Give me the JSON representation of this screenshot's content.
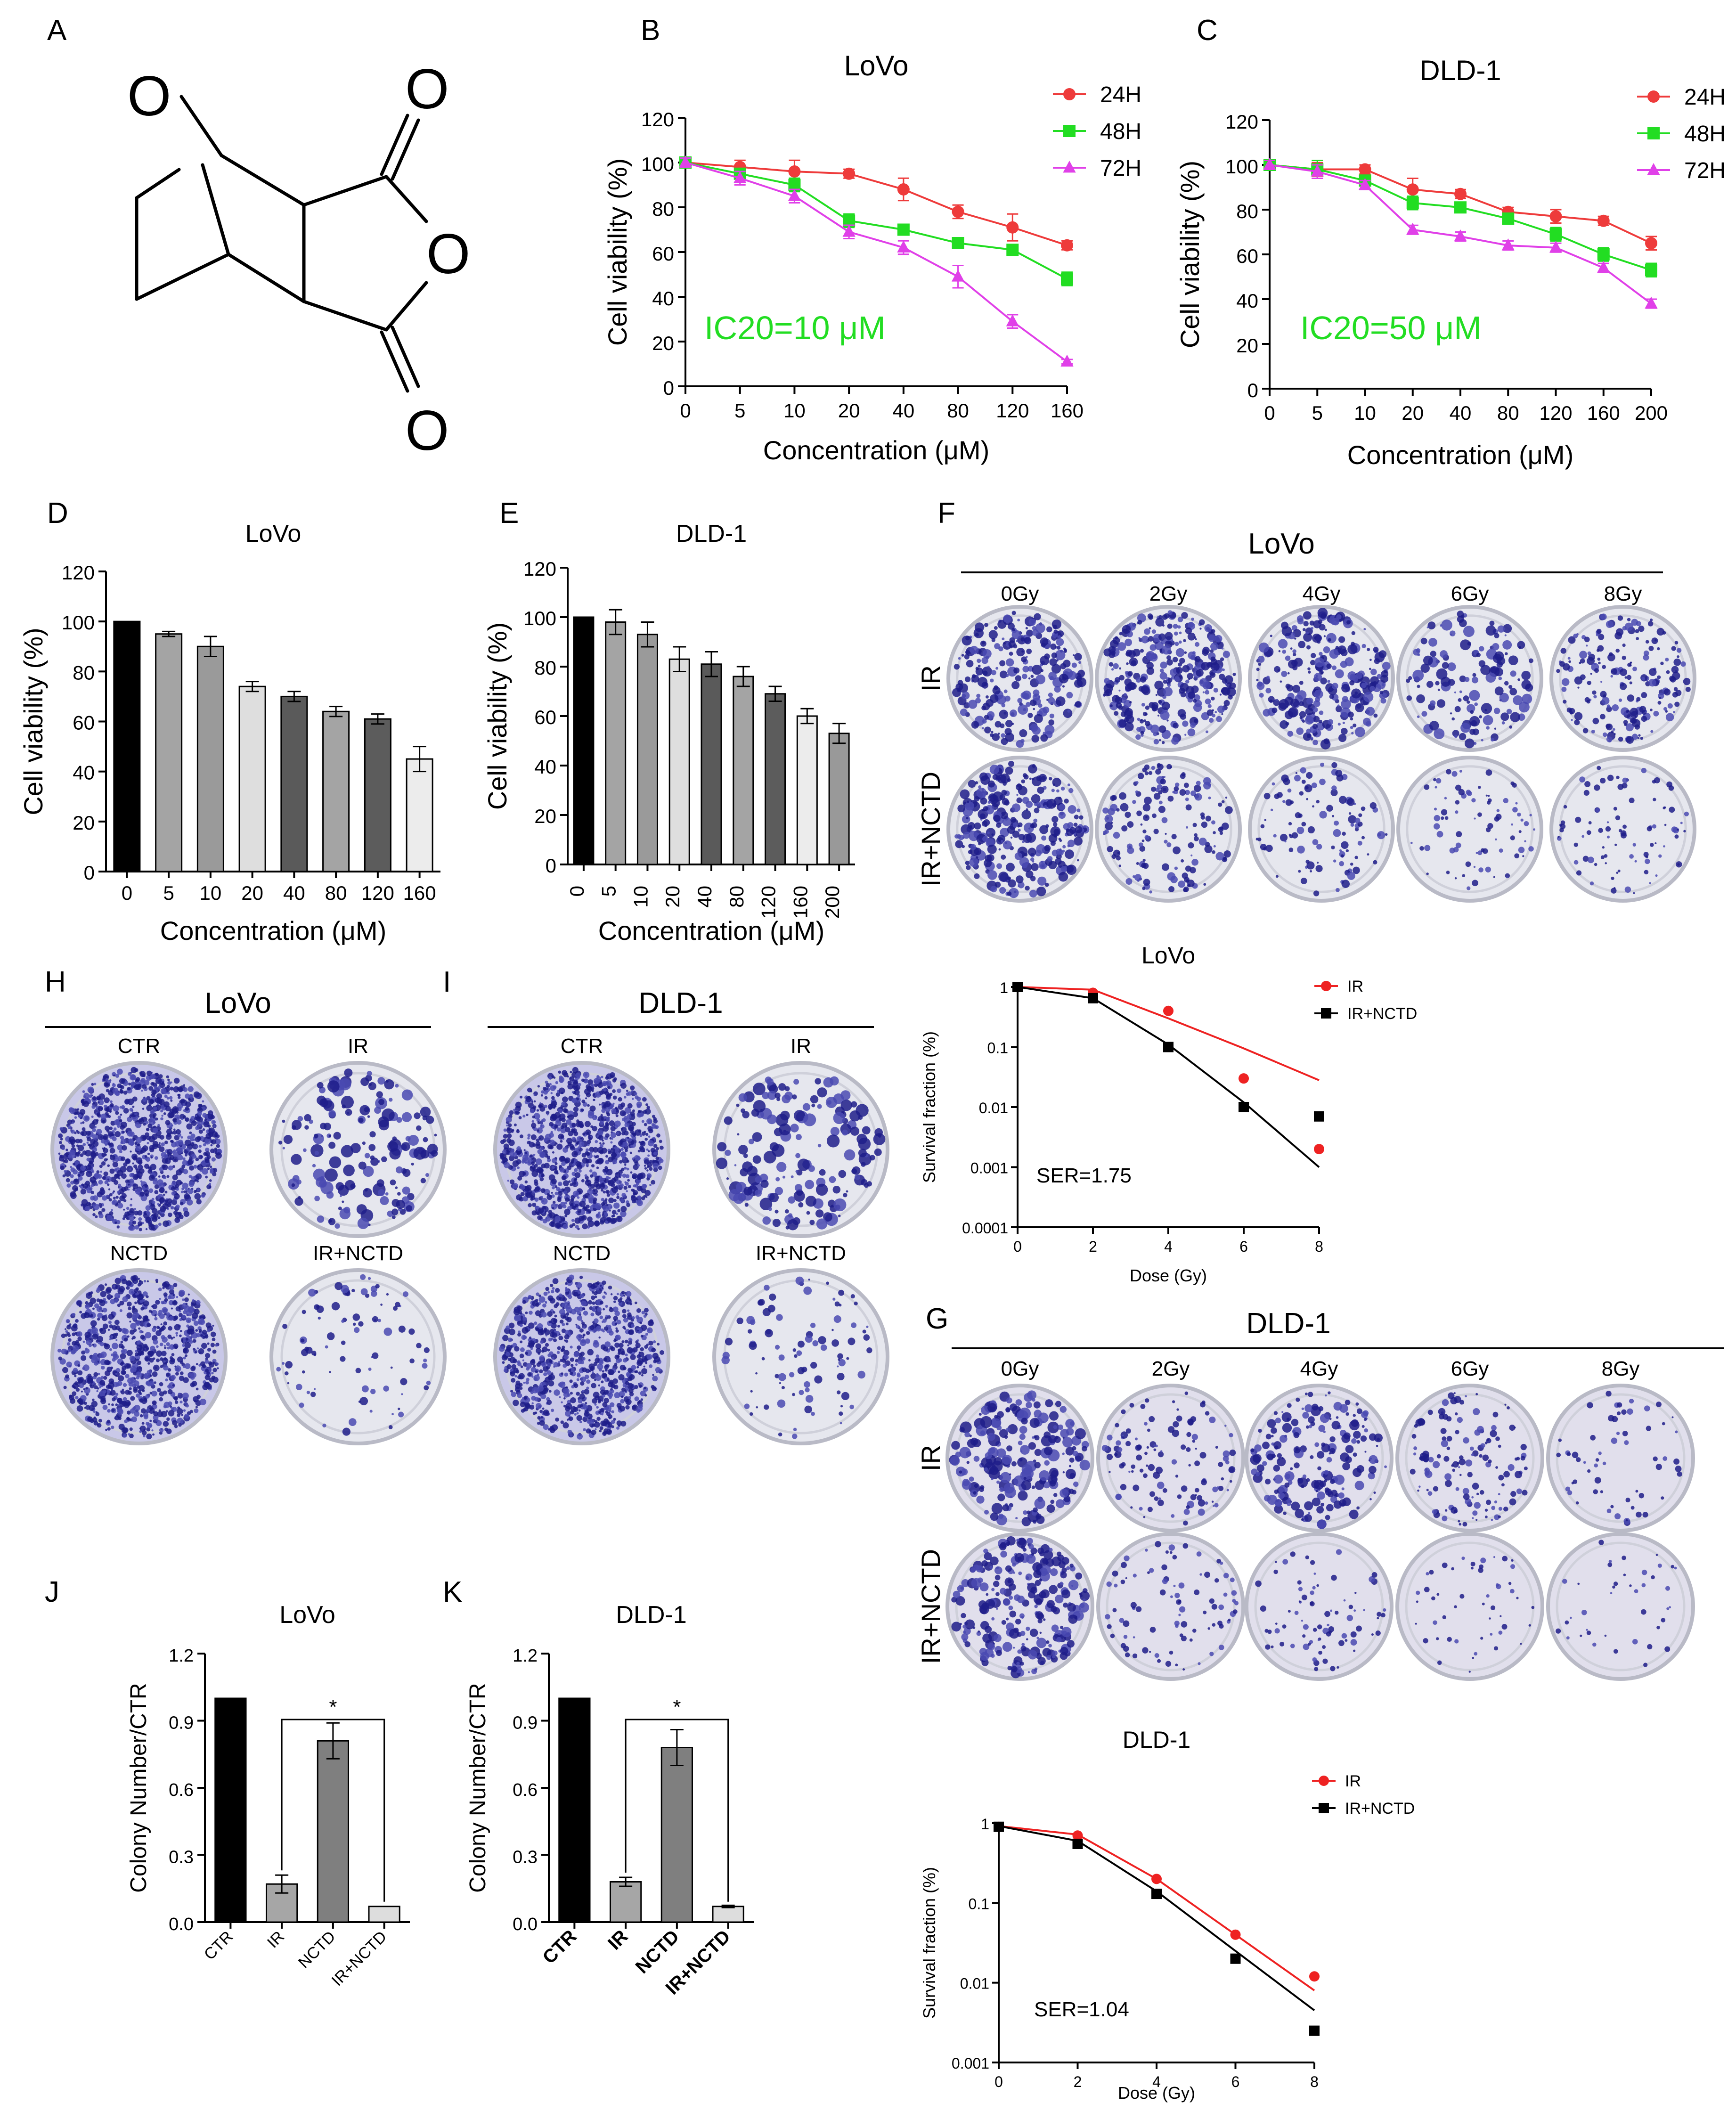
{
  "panel_letters": [
    "A",
    "B",
    "C",
    "D",
    "E",
    "F",
    "G",
    "H",
    "I",
    "J",
    "K"
  ],
  "molecule": {
    "atom_labels": [
      "O",
      "O",
      "O",
      "O"
    ]
  },
  "plates": {
    "doses": [
      "0Gy",
      "2Gy",
      "4Gy",
      "6Gy",
      "8Gy"
    ],
    "rows": [
      "IR",
      "IR+NCTD"
    ],
    "groups": [
      "CTR",
      "IR",
      "NCTD",
      "IR+NCTD"
    ],
    "lovo_title": "LoVo",
    "dld_title": "DLD-1",
    "colors": {
      "dark": "#1f1d8a",
      "mid": "#4a4ab2",
      "light": "#d7d8e2",
      "rim": "#b9bac6",
      "bg": "#e6e7ee"
    }
  },
  "chart_data": [
    {
      "id": "B",
      "type": "line",
      "title": "LoVo",
      "xlabel": "Concentration (μM)",
      "ylabel": "Cell viability (%)",
      "categories": [
        "0",
        "5",
        "10",
        "20",
        "40",
        "80",
        "120",
        "160"
      ],
      "ylim": [
        0,
        120
      ],
      "yticks": [
        "0",
        "20",
        "40",
        "60",
        "80",
        "100",
        "120"
      ],
      "annotation": "IC20=10 μM",
      "annotation_color": "#22dd22",
      "series": [
        {
          "name": "24H",
          "color": "#ee3b3b",
          "marker": "circle",
          "values": [
            100,
            98,
            96,
            95,
            88,
            78,
            71,
            63
          ],
          "err": [
            2,
            3,
            5,
            2,
            5,
            3,
            6,
            2
          ]
        },
        {
          "name": "48H",
          "color": "#22dd22",
          "marker": "square",
          "values": [
            100,
            95,
            90,
            74,
            70,
            64,
            61,
            48
          ],
          "err": [
            2,
            2,
            3,
            3,
            2,
            2,
            2,
            3
          ]
        },
        {
          "name": "72H",
          "color": "#e040e8",
          "marker": "triangle",
          "values": [
            100,
            93,
            85,
            69,
            62,
            49,
            29,
            11
          ],
          "err": [
            2,
            3,
            3,
            3,
            3,
            5,
            3,
            1
          ]
        }
      ]
    },
    {
      "id": "C",
      "type": "line",
      "title": "DLD-1",
      "xlabel": "Concentration (μM)",
      "ylabel": "Cell viability (%)",
      "categories": [
        "0",
        "5",
        "10",
        "20",
        "40",
        "80",
        "120",
        "160",
        "200"
      ],
      "ylim": [
        0,
        120
      ],
      "yticks": [
        "0",
        "20",
        "40",
        "60",
        "80",
        "100",
        "120"
      ],
      "annotation": "IC20=50 μM",
      "annotation_color": "#22dd22",
      "series": [
        {
          "name": "24H",
          "color": "#ee3b3b",
          "marker": "circle",
          "values": [
            100,
            98,
            98,
            89,
            87,
            79,
            77,
            75,
            65
          ],
          "err": [
            2,
            3,
            2,
            5,
            2,
            2,
            3,
            2,
            3
          ]
        },
        {
          "name": "48H",
          "color": "#22dd22",
          "marker": "square",
          "values": [
            100,
            98,
            93,
            83,
            81,
            76,
            69,
            60,
            53
          ],
          "err": [
            2,
            4,
            2,
            3,
            2,
            2,
            3,
            3,
            3
          ]
        },
        {
          "name": "72H",
          "color": "#e040e8",
          "marker": "triangle",
          "values": [
            100,
            97,
            91,
            71,
            68,
            64,
            63,
            54,
            38
          ],
          "err": [
            2,
            3,
            2,
            2,
            2,
            2,
            2,
            2,
            2
          ]
        }
      ]
    },
    {
      "id": "D",
      "type": "bar",
      "title": "LoVo",
      "xlabel": "Concentration (μM)",
      "ylabel": "Cell viability (%)",
      "categories": [
        "0",
        "5",
        "10",
        "20",
        "40",
        "80",
        "120",
        "160"
      ],
      "ylim": [
        0,
        120
      ],
      "yticks": [
        "0",
        "20",
        "40",
        "60",
        "80",
        "100",
        "120"
      ],
      "values": [
        100,
        95,
        90,
        74,
        70,
        64,
        61,
        45
      ],
      "err": [
        0,
        1,
        4,
        2,
        2,
        2,
        2,
        5
      ],
      "colors": [
        "#000000",
        "#a4a4a4",
        "#9a9a9a",
        "#dedede",
        "#5a5a5a",
        "#a4a4a4",
        "#5c5c5c",
        "#ececec"
      ]
    },
    {
      "id": "E",
      "type": "bar",
      "title": "DLD-1",
      "xlabel": "Concentration (μM)",
      "ylabel": "Cell viability (%)",
      "categories": [
        "0",
        "5",
        "10",
        "20",
        "40",
        "80",
        "120",
        "160",
        "200"
      ],
      "ylim": [
        0,
        120
      ],
      "yticks": [
        "0",
        "20",
        "40",
        "60",
        "80",
        "100",
        "120"
      ],
      "values": [
        100,
        98,
        93,
        83,
        81,
        76,
        69,
        60,
        53
      ],
      "err": [
        0,
        5,
        5,
        5,
        5,
        4,
        3,
        3,
        4
      ],
      "colors": [
        "#000000",
        "#a4a4a4",
        "#9a9a9a",
        "#dedede",
        "#5a5a5a",
        "#a4a4a4",
        "#5c5c5c",
        "#ececec",
        "#999999"
      ]
    },
    {
      "id": "F",
      "type": "scatter",
      "title": "LoVo",
      "xlabel": "Dose (Gy)",
      "ylabel": "Survival fraction (%)",
      "xlim": [
        0,
        8
      ],
      "xticks": [
        "0",
        "2",
        "4",
        "6",
        "8"
      ],
      "ylim_log": [
        0.0001,
        1
      ],
      "yticks": [
        "1",
        "0.1",
        "0.01",
        "0.001",
        "0.0001"
      ],
      "annotation": "SER=1.75",
      "series": [
        {
          "name": "IR",
          "color": "#ee2222",
          "marker": "circle",
          "x": [
            0,
            2,
            4,
            6,
            8
          ],
          "y": [
            1,
            0.8,
            0.4,
            0.03,
            0.002
          ],
          "fit": [
            1,
            0.9,
            0.3,
            0.095,
            0.028
          ]
        },
        {
          "name": "IR+NCTD",
          "color": "#000000",
          "marker": "square",
          "x": [
            0,
            2,
            4,
            6,
            8
          ],
          "y": [
            1,
            0.65,
            0.1,
            0.01,
            0.007
          ],
          "fit": [
            1,
            0.65,
            0.11,
            0.012,
            0.001
          ]
        }
      ]
    },
    {
      "id": "G",
      "type": "scatter",
      "title": "DLD-1",
      "xlabel": "Dose (Gy)",
      "ylabel": "Survival fraction (%)",
      "xlim": [
        0,
        8
      ],
      "xticks": [
        "0",
        "2",
        "4",
        "6",
        "8"
      ],
      "ylim_log": [
        0.001,
        1
      ],
      "yticks": [
        "1",
        "0.1",
        "0.01",
        "0.001"
      ],
      "annotation": "SER=1.04",
      "series": [
        {
          "name": "IR",
          "color": "#ee2222",
          "marker": "circle",
          "x": [
            0,
            2,
            4,
            6,
            8
          ],
          "y": [
            0.9,
            0.7,
            0.2,
            0.04,
            0.012
          ],
          "fit": [
            0.92,
            0.72,
            0.2,
            0.04,
            0.008
          ]
        },
        {
          "name": "IR+NCTD",
          "color": "#000000",
          "marker": "square",
          "x": [
            0,
            2,
            4,
            6,
            8
          ],
          "y": [
            0.9,
            0.55,
            0.13,
            0.02,
            0.0025
          ],
          "fit": [
            0.92,
            0.6,
            0.14,
            0.025,
            0.0045
          ]
        }
      ]
    },
    {
      "id": "J",
      "type": "bar",
      "title": "LoVo",
      "ylabel": "Colony Number/CTR",
      "tick_style": "normal",
      "categories": [
        "CTR",
        "IR",
        "NCTD",
        "IR+NCTD"
      ],
      "ylim": [
        0,
        1.2
      ],
      "yticks": [
        "0.0",
        "0.3",
        "0.6",
        "0.9",
        "1.2"
      ],
      "values": [
        1.0,
        0.17,
        0.81,
        0.07
      ],
      "err": [
        0,
        0.04,
        0.08,
        0
      ],
      "colors": [
        "#000000",
        "#a6a6a6",
        "#7f7f7f",
        "#dddddd"
      ],
      "significance": "*"
    },
    {
      "id": "K",
      "type": "bar",
      "title": "DLD-1",
      "ylabel": "Colony Number/CTR",
      "tick_style": "bold",
      "categories": [
        "CTR",
        "IR",
        "NCTD",
        "IR+NCTD"
      ],
      "ylim": [
        0,
        1.2
      ],
      "yticks": [
        "0.0",
        "0.3",
        "0.6",
        "0.9",
        "1.2"
      ],
      "values": [
        1.0,
        0.18,
        0.78,
        0.07
      ],
      "err": [
        0,
        0.02,
        0.08,
        0.005
      ],
      "colors": [
        "#000000",
        "#a6a6a6",
        "#7f7f7f",
        "#dddddd"
      ],
      "significance": "*"
    }
  ]
}
